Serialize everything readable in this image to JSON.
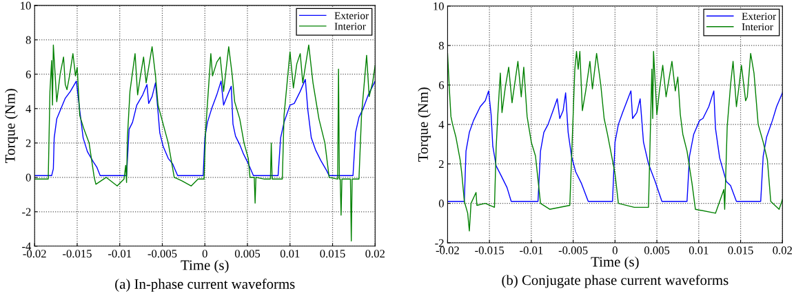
{
  "chart_data": [
    {
      "type": "line",
      "xlabel": "Time (s)",
      "ylabel": "Torque (Nm)",
      "annotations": [
        "(a) In-phase current waveforms"
      ],
      "xlim": [
        -0.02,
        0.02
      ],
      "xticks": [
        -0.02,
        -0.015,
        -0.01,
        -0.005,
        0,
        0.005,
        0.01,
        0.015,
        0.02
      ],
      "ylim": [
        -4,
        10
      ],
      "yticks": [
        -4,
        -2,
        0,
        2,
        4,
        6,
        8,
        10
      ],
      "grid": true,
      "legend": "top right",
      "line_style": "solid",
      "marker": "none",
      "series": [
        {
          "name": "Exterior",
          "color": "#0000ff",
          "x": [
            -0.02,
            -0.018,
            -0.0178,
            -0.0177,
            -0.0174,
            -0.0169,
            -0.0164,
            -0.0158,
            -0.0151,
            -0.0147,
            -0.0143,
            -0.0138,
            -0.0131,
            -0.0127,
            -0.0123,
            -0.0092,
            -0.0089,
            -0.0085,
            -0.008,
            -0.0073,
            -0.0068,
            -0.0066,
            -0.0062,
            -0.0058,
            -0.0055,
            -0.0053,
            -0.0049,
            -0.0043,
            -0.0038,
            -0.0032,
            -0.0002,
            0.0,
            0.0003,
            0.0008,
            0.0014,
            0.0019,
            0.0022,
            0.0026,
            0.0031,
            0.0033,
            0.0036,
            0.0041,
            0.0045,
            0.0051,
            0.0057,
            0.0086,
            0.0089,
            0.0093,
            0.01,
            0.0105,
            0.0112,
            0.0118,
            0.0121,
            0.0125,
            0.013,
            0.0136,
            0.0143,
            0.0146,
            0.0174,
            0.0177,
            0.0181,
            0.0186,
            0.0192,
            0.02
          ],
          "values": [
            0.1,
            0.1,
            0.5,
            2.3,
            3.4,
            4.0,
            4.6,
            5.0,
            5.6,
            3.9,
            2.3,
            1.5,
            0.9,
            0.6,
            0.1,
            0.1,
            2.8,
            3.2,
            4.2,
            4.8,
            5.4,
            4.3,
            4.7,
            5.5,
            3.8,
            2.6,
            1.8,
            1.1,
            0.8,
            0.1,
            0.1,
            2.3,
            3.2,
            4.0,
            4.8,
            5.6,
            4.2,
            4.7,
            5.3,
            3.1,
            2.4,
            1.9,
            1.4,
            0.8,
            0.1,
            0.1,
            2.3,
            3.2,
            4.2,
            4.3,
            5.0,
            5.7,
            3.9,
            2.3,
            1.6,
            1.0,
            0.4,
            0.1,
            0.1,
            2.6,
            3.5,
            4.0,
            4.8,
            5.6
          ]
        },
        {
          "name": "Interior",
          "color": "#008000",
          "x": [
            -0.02,
            -0.0184,
            -0.0182,
            -0.018,
            -0.0179,
            -0.0178,
            -0.0174,
            -0.017,
            -0.0166,
            -0.0164,
            -0.0162,
            -0.0159,
            -0.0155,
            -0.0152,
            -0.015,
            -0.0147,
            -0.0142,
            -0.0136,
            -0.013,
            -0.0128,
            -0.0116,
            -0.0103,
            -0.0095,
            -0.0093,
            -0.0092,
            -0.0091,
            -0.0088,
            -0.0082,
            -0.0079,
            -0.0076,
            -0.0072,
            -0.0069,
            -0.0062,
            -0.0058,
            -0.0055,
            -0.0049,
            -0.0043,
            -0.0036,
            -0.0027,
            -0.0016,
            -0.0008,
            -0.0001,
            0.0001,
            0.0007,
            0.0009,
            0.0014,
            0.0018,
            0.0022,
            0.0028,
            0.0032,
            0.0035,
            0.0041,
            0.0046,
            0.0051,
            0.0053,
            0.0058,
            0.0059,
            0.006,
            0.007,
            0.0077,
            0.0078,
            0.0079,
            0.0091,
            0.0093,
            0.01,
            0.0104,
            0.0108,
            0.0112,
            0.0115,
            0.0122,
            0.0127,
            0.0134,
            0.0141,
            0.0146,
            0.0156,
            0.0157,
            0.0158,
            0.0159,
            0.016,
            0.0161,
            0.0171,
            0.0172,
            0.0173,
            0.0181,
            0.0184,
            0.019,
            0.0193,
            0.0197,
            0.02
          ],
          "values": [
            -0.1,
            -0.1,
            5.0,
            6.8,
            4.2,
            7.7,
            4.4,
            6.0,
            7.0,
            5.4,
            5.1,
            5.9,
            7.2,
            5.9,
            6.4,
            3.6,
            2.8,
            2.0,
            0.0,
            -0.4,
            0.0,
            -0.5,
            -0.1,
            0.7,
            -0.3,
            2.3,
            5.0,
            7.2,
            4.8,
            5.8,
            7.0,
            5.5,
            7.6,
            5.9,
            4.2,
            3.1,
            2.0,
            0.0,
            -0.2,
            -0.5,
            -0.1,
            -0.1,
            2.8,
            7.2,
            5.9,
            6.7,
            7.0,
            5.0,
            7.6,
            6.0,
            4.4,
            3.4,
            2.0,
            1.1,
            0.0,
            0.0,
            -1.5,
            0.0,
            -0.1,
            -0.1,
            2.0,
            -0.1,
            -0.1,
            3.6,
            7.3,
            5.2,
            6.6,
            7.2,
            5.5,
            7.7,
            5.5,
            3.4,
            2.0,
            0.0,
            -0.1,
            6.3,
            -0.1,
            -0.1,
            -2.2,
            -0.1,
            -0.1,
            -3.7,
            -0.1,
            -0.1,
            3.6,
            7.1,
            4.7,
            5.5,
            6.5
          ]
        }
      ]
    },
    {
      "type": "line",
      "xlabel": "Time (s)",
      "ylabel": "Torque (Nm)",
      "annotations": [
        "(b) Conjugate phase current waveforms"
      ],
      "xlim": [
        -0.02,
        0.02
      ],
      "xticks": [
        -0.02,
        -0.015,
        -0.01,
        -0.005,
        0,
        0.005,
        0.01,
        0.015,
        0.02
      ],
      "ylim": [
        -2,
        10
      ],
      "yticks": [
        -2,
        0,
        2,
        4,
        6,
        8,
        10
      ],
      "grid": true,
      "legend": "top right",
      "line_style": "solid",
      "marker": "none",
      "series": [
        {
          "name": "Exterior",
          "color": "#0000ff",
          "x": [
            -0.02,
            -0.018,
            -0.0178,
            -0.0174,
            -0.0169,
            -0.0161,
            -0.0155,
            -0.0151,
            -0.0148,
            -0.0146,
            -0.0142,
            -0.0136,
            -0.0129,
            -0.0124,
            -0.0092,
            -0.0089,
            -0.0085,
            -0.008,
            -0.0074,
            -0.0069,
            -0.0066,
            -0.0062,
            -0.0059,
            -0.0056,
            -0.0052,
            -0.0047,
            -0.004,
            -0.0032,
            -0.0003,
            0.0,
            0.0004,
            0.0009,
            0.0019,
            0.0021,
            0.0026,
            0.003,
            0.0034,
            0.004,
            0.0048,
            0.0056,
            0.0086,
            0.0089,
            0.0094,
            0.0101,
            0.0105,
            0.0112,
            0.0118,
            0.012,
            0.0125,
            0.0133,
            0.0138,
            0.0145,
            0.0174,
            0.0177,
            0.0181,
            0.0188,
            0.0193,
            0.02
          ],
          "values": [
            0.1,
            0.1,
            2.65,
            3.6,
            4.2,
            4.9,
            5.2,
            5.7,
            4.5,
            2.9,
            1.9,
            1.4,
            0.8,
            0.1,
            0.1,
            2.65,
            3.6,
            4.0,
            4.7,
            5.3,
            4.3,
            4.7,
            5.6,
            3.6,
            2.4,
            1.6,
            1.0,
            0.1,
            0.1,
            3.1,
            4.0,
            4.6,
            5.7,
            4.3,
            4.6,
            5.3,
            3.1,
            2.0,
            1.1,
            0.1,
            0.1,
            2.4,
            3.5,
            4.2,
            4.3,
            4.9,
            5.7,
            3.8,
            2.3,
            1.1,
            0.9,
            0.1,
            0.1,
            2.4,
            3.35,
            4.2,
            4.9,
            5.6
          ]
        },
        {
          "name": "Interior",
          "color": "#008000",
          "x": [
            -0.02,
            -0.0198,
            -0.0196,
            -0.0194,
            -0.019,
            -0.0185,
            -0.0183,
            -0.018,
            -0.0176,
            -0.0174,
            -0.0172,
            -0.0166,
            -0.0165,
            -0.0155,
            -0.0144,
            -0.0142,
            -0.014,
            -0.0137,
            -0.0135,
            -0.0131,
            -0.0127,
            -0.0123,
            -0.0116,
            -0.0112,
            -0.0109,
            -0.0105,
            -0.01,
            -0.0095,
            -0.0089,
            -0.0078,
            -0.0054,
            -0.0052,
            -0.0048,
            -0.0046,
            -0.0044,
            -0.0042,
            -0.0039,
            -0.0035,
            -0.003,
            -0.0027,
            -0.0022,
            -0.0017,
            -0.0013,
            -0.0009,
            -0.0004,
            0.0,
            0.0004,
            0.0023,
            0.004,
            0.0044,
            0.0045,
            0.0046,
            0.005,
            0.0053,
            0.0057,
            0.0061,
            0.0068,
            0.0072,
            0.0075,
            0.0078,
            0.0081,
            0.0086,
            0.0092,
            0.0096,
            0.012,
            0.013,
            0.0131,
            0.0134,
            0.0138,
            0.0141,
            0.0145,
            0.0148,
            0.0151,
            0.0156,
            0.0158,
            0.0162,
            0.0166,
            0.0171,
            0.0177,
            0.0182,
            0.0186,
            0.0196,
            0.02
          ],
          "values": [
            7.6,
            5.9,
            4.4,
            4.0,
            3.35,
            2.2,
            1.5,
            0.1,
            -0.5,
            -1.4,
            0.0,
            0.55,
            -0.1,
            0.0,
            -0.2,
            2.8,
            4.5,
            6.6,
            4.6,
            5.9,
            6.9,
            5.1,
            7.2,
            5.4,
            6.9,
            4.4,
            3.1,
            2.4,
            0.0,
            -0.3,
            -0.1,
            2.2,
            6.8,
            7.7,
            6.8,
            7.7,
            4.7,
            5.7,
            7.2,
            5.8,
            7.6,
            6.0,
            4.3,
            3.5,
            2.4,
            1.5,
            0.0,
            -0.2,
            -0.2,
            6.8,
            4.3,
            7.7,
            4.5,
            5.7,
            7.0,
            5.4,
            7.2,
            5.7,
            6.4,
            4.5,
            3.5,
            2.65,
            1.0,
            -0.3,
            -0.5,
            0.7,
            -0.3,
            3.9,
            6.0,
            7.2,
            4.9,
            5.9,
            7.0,
            5.2,
            5.4,
            7.6,
            6.6,
            4.0,
            3.1,
            2.2,
            0.1,
            -0.3,
            0.2
          ]
        }
      ]
    }
  ]
}
